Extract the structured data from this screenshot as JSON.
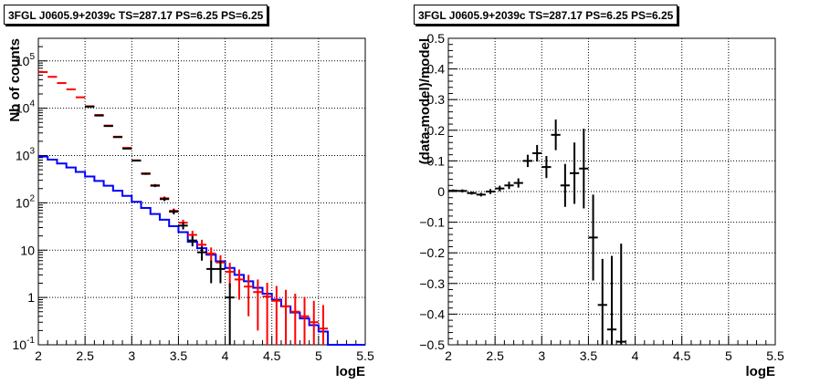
{
  "chart_data": [
    {
      "type": "line",
      "title": "3FGL J0605.9+2039c TS=287.17 PS=6.25 PS=6.25",
      "xlabel": "logE",
      "ylabel": "Nb of counts",
      "xlim": [
        2.0,
        5.5
      ],
      "ylim": [
        0.1,
        300000
      ],
      "yscale": "log",
      "grid": true,
      "x_ticks": [
        "2",
        "2.5",
        "3",
        "3.5",
        "4",
        "4.5",
        "5",
        "5.5"
      ],
      "y_ticks": [
        "10^-1",
        "1",
        "10",
        "10^2",
        "10^3",
        "10^4",
        "10^5"
      ],
      "series": [
        {
          "color": "#ff0000",
          "style": "error-bars",
          "points": [
            {
              "x": 2.05,
              "y": 58000,
              "err": 240
            },
            {
              "x": 2.15,
              "y": 46000,
              "err": 214
            },
            {
              "x": 2.25,
              "y": 34000,
              "err": 184
            },
            {
              "x": 2.35,
              "y": 25000,
              "err": 158
            },
            {
              "x": 2.45,
              "y": 17000,
              "err": 130
            },
            {
              "x": 2.55,
              "y": 11000,
              "err": 105
            },
            {
              "x": 2.65,
              "y": 7200,
              "err": 85
            },
            {
              "x": 2.75,
              "y": 4300,
              "err": 66
            },
            {
              "x": 2.85,
              "y": 2500,
              "err": 50
            },
            {
              "x": 2.95,
              "y": 1450,
              "err": 38
            },
            {
              "x": 3.05,
              "y": 790,
              "err": 28
            },
            {
              "x": 3.15,
              "y": 420,
              "err": 20
            },
            {
              "x": 3.25,
              "y": 235,
              "err": 15
            },
            {
              "x": 3.35,
              "y": 125,
              "err": 11
            },
            {
              "x": 3.45,
              "y": 68,
              "err": 8
            },
            {
              "x": 3.55,
              "y": 38,
              "err": 6
            },
            {
              "x": 3.65,
              "y": 21,
              "err": 4.6
            },
            {
              "x": 3.75,
              "y": 13,
              "err": 3.6
            },
            {
              "x": 3.85,
              "y": 8.5,
              "err": 2.9
            },
            {
              "x": 3.95,
              "y": 5.5,
              "err": 2.3
            },
            {
              "x": 4.05,
              "y": 3.5,
              "err": 1.9
            },
            {
              "x": 4.15,
              "y": 2.4,
              "err": 1.5
            },
            {
              "x": 4.25,
              "y": 1.7,
              "err": 1.3
            },
            {
              "x": 4.35,
              "y": 1.3,
              "err": 1.1
            },
            {
              "x": 4.45,
              "y": 1.05,
              "err": 1.0
            },
            {
              "x": 4.55,
              "y": 0.85,
              "err": 0.9
            },
            {
              "x": 4.65,
              "y": 0.65,
              "err": 0.8
            },
            {
              "x": 4.75,
              "y": 0.5,
              "err": 0.7
            },
            {
              "x": 4.85,
              "y": 0.4,
              "err": 0.63
            },
            {
              "x": 4.95,
              "y": 0.3,
              "err": 0.55
            },
            {
              "x": 5.05,
              "y": 0.22,
              "err": 0.47
            }
          ]
        },
        {
          "color": "#000000",
          "style": "error-bars",
          "points": [
            {
              "x": 2.55,
              "y": 10800,
              "err": 104
            },
            {
              "x": 2.65,
              "y": 7000,
              "err": 84
            },
            {
              "x": 2.75,
              "y": 4200,
              "err": 65
            },
            {
              "x": 2.85,
              "y": 2450,
              "err": 49
            },
            {
              "x": 2.95,
              "y": 1400,
              "err": 37
            },
            {
              "x": 3.05,
              "y": 780,
              "err": 28
            },
            {
              "x": 3.15,
              "y": 410,
              "err": 20
            },
            {
              "x": 3.25,
              "y": 230,
              "err": 15
            },
            {
              "x": 3.35,
              "y": 120,
              "err": 11
            },
            {
              "x": 3.45,
              "y": 65,
              "err": 8
            },
            {
              "x": 3.55,
              "y": 33,
              "err": 5.7
            },
            {
              "x": 3.65,
              "y": 16,
              "err": 4
            },
            {
              "x": 3.75,
              "y": 9,
              "err": 3
            },
            {
              "x": 3.85,
              "y": 4,
              "err": 2
            },
            {
              "x": 3.95,
              "y": 4,
              "err": 2
            },
            {
              "x": 4.05,
              "y": 1,
              "err": 0.99
            }
          ]
        },
        {
          "color": "#0000ff",
          "style": "step",
          "edges": [
            2.0,
            2.1,
            2.2,
            2.3,
            2.4,
            2.5,
            2.6,
            2.7,
            2.8,
            2.9,
            3.0,
            3.1,
            3.2,
            3.3,
            3.4,
            3.5,
            3.6,
            3.7,
            3.8,
            3.9,
            4.0,
            4.1,
            4.2,
            4.3,
            4.4,
            4.5,
            4.6,
            4.7,
            4.8,
            4.9,
            5.0,
            5.1,
            5.2,
            5.3,
            5.4,
            5.5
          ],
          "values": [
            950,
            820,
            680,
            560,
            450,
            360,
            290,
            230,
            180,
            140,
            105,
            78,
            58,
            44,
            32,
            24,
            15,
            11,
            8,
            5.8,
            4.2,
            3.0,
            2.2,
            1.6,
            1.2,
            0.9,
            0.65,
            0.48,
            0.36,
            0.26,
            0.19,
            0.1,
            0.1,
            0.1,
            0.1
          ]
        }
      ]
    },
    {
      "type": "scatter",
      "title": "3FGL J0605.9+2039c TS=287.17 PS=6.25 PS=6.25",
      "xlabel": "logE",
      "ylabel": "(data-model)/model",
      "xlim": [
        2.0,
        5.5
      ],
      "ylim": [
        -0.5,
        0.5
      ],
      "grid": true,
      "x_ticks": [
        "2",
        "2.5",
        "3",
        "3.5",
        "4",
        "4.5",
        "5",
        "5.5"
      ],
      "y_ticks": [
        "−0.5",
        "−0.4",
        "−0.3",
        "−0.2",
        "−0.1",
        "0",
        "0.1",
        "0.2",
        "0.3",
        "0.4",
        "0.5"
      ],
      "series": [
        {
          "color": "#000000",
          "style": "error-bars",
          "points": [
            {
              "x": 2.05,
              "y": 0.003,
              "err": 0.004
            },
            {
              "x": 2.15,
              "y": 0.002,
              "err": 0.005
            },
            {
              "x": 2.25,
              "y": -0.005,
              "err": 0.005
            },
            {
              "x": 2.35,
              "y": -0.01,
              "err": 0.006
            },
            {
              "x": 2.45,
              "y": 0.0,
              "err": 0.008
            },
            {
              "x": 2.55,
              "y": 0.01,
              "err": 0.009
            },
            {
              "x": 2.65,
              "y": 0.02,
              "err": 0.012
            },
            {
              "x": 2.75,
              "y": 0.028,
              "err": 0.015
            },
            {
              "x": 2.85,
              "y": 0.1,
              "err": 0.02
            },
            {
              "x": 2.95,
              "y": 0.125,
              "err": 0.027
            },
            {
              "x": 3.05,
              "y": 0.08,
              "err": 0.036
            },
            {
              "x": 3.15,
              "y": 0.185,
              "err": 0.05
            },
            {
              "x": 3.25,
              "y": 0.02,
              "err": 0.07
            },
            {
              "x": 3.35,
              "y": 0.06,
              "err": 0.1
            },
            {
              "x": 3.45,
              "y": 0.075,
              "err": 0.13
            },
            {
              "x": 3.55,
              "y": -0.15,
              "err": 0.14
            },
            {
              "x": 3.65,
              "y": -0.37,
              "err": 0.15
            },
            {
              "x": 3.75,
              "y": -0.45,
              "err": 0.24
            },
            {
              "x": 3.85,
              "y": -0.49,
              "err": 0.32
            }
          ]
        }
      ]
    }
  ]
}
